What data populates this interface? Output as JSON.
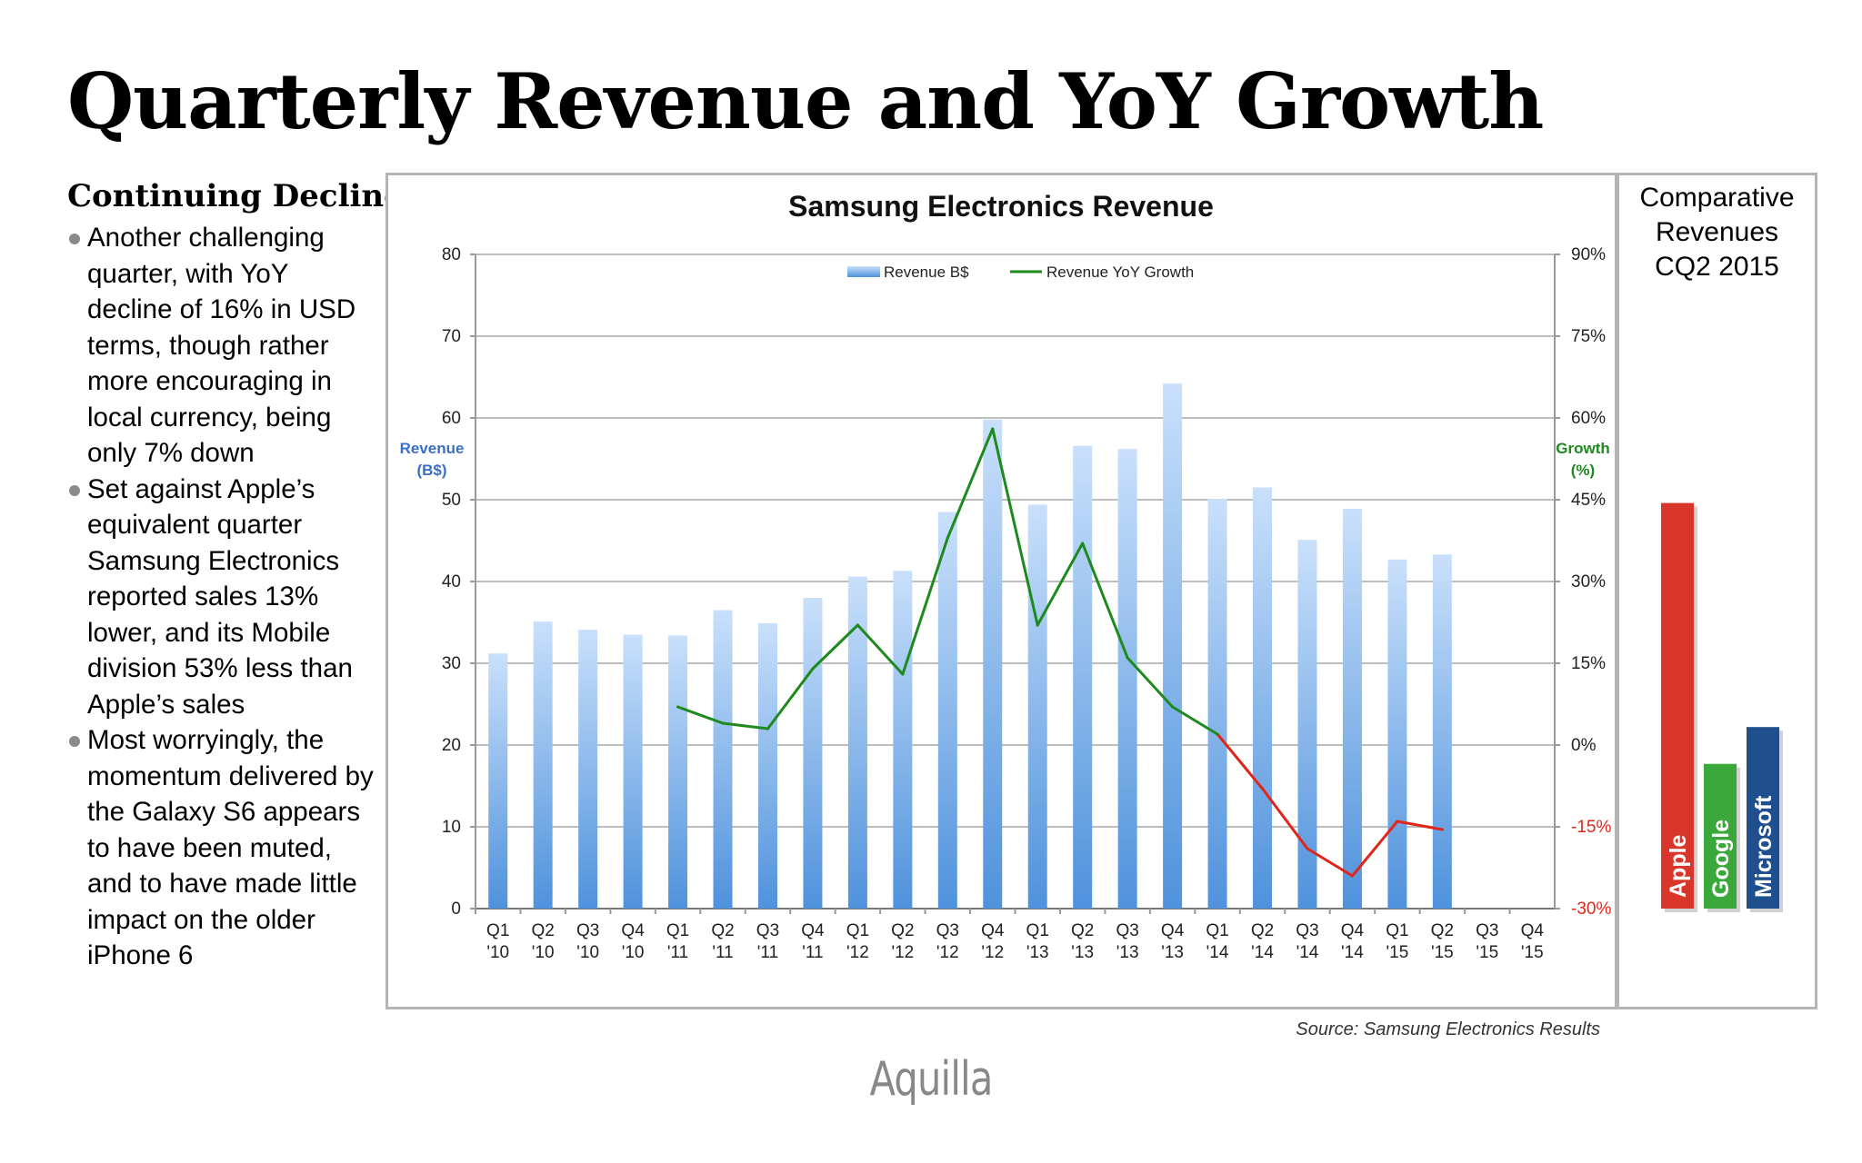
{
  "page": {
    "title": "Quarterly Revenue and YoY Growth",
    "sidebar_heading": "Continuing Decline",
    "bullets": [
      "Another challenging quarter, with YoY decline of 16% in USD terms, though rather more encouraging in local currency, being only 7% down",
      "Set against Apple’s equivalent quarter Samsung Electronics reported sales 13% lower, and its Mobile division 53% less than Apple’s sales",
      "Most worryingly, the momentum delivered by the Galaxy S6 appears to have been muted, and to have made little impact on the older iPhone 6"
    ],
    "source": "Source: Samsung Electronics Results",
    "logo": "Aquilla",
    "compare_title": [
      "Comparative",
      "Revenues",
      "CQ2 2015"
    ]
  },
  "chart_data": [
    {
      "type": "bar+line",
      "title": "Samsung Electronics Revenue",
      "ylabel_left": [
        "Revenue",
        "(B$)"
      ],
      "ylabel_right": [
        "Growth",
        "(%)"
      ],
      "ylim_left": [
        0,
        80
      ],
      "yticks_left": [
        "0",
        "10",
        "20",
        "30",
        "40",
        "50",
        "60",
        "70",
        "80"
      ],
      "ylim_right": [
        -30,
        90
      ],
      "yticks_right": [
        "-30%",
        "-15%",
        "0%",
        "15%",
        "30%",
        "45%",
        "60%",
        "75%",
        "90%"
      ],
      "grid": true,
      "legend_position": "top-center",
      "categories": [
        [
          "Q1",
          "'10"
        ],
        [
          "Q2",
          "'10"
        ],
        [
          "Q3",
          "'10"
        ],
        [
          "Q4",
          "'10"
        ],
        [
          "Q1",
          "'11"
        ],
        [
          "Q2",
          "'11"
        ],
        [
          "Q3",
          "'11"
        ],
        [
          "Q4",
          "'11"
        ],
        [
          "Q1",
          "'12"
        ],
        [
          "Q2",
          "'12"
        ],
        [
          "Q3",
          "'12"
        ],
        [
          "Q4",
          "'12"
        ],
        [
          "Q1",
          "'13"
        ],
        [
          "Q2",
          "'13"
        ],
        [
          "Q3",
          "'13"
        ],
        [
          "Q4",
          "'13"
        ],
        [
          "Q1",
          "'14"
        ],
        [
          "Q2",
          "'14"
        ],
        [
          "Q3",
          "'14"
        ],
        [
          "Q4",
          "'14"
        ],
        [
          "Q1",
          "'15"
        ],
        [
          "Q2",
          "'15"
        ],
        [
          "Q3",
          "'15"
        ],
        [
          "Q4",
          "'15"
        ]
      ],
      "series": [
        {
          "name": "Revenue B$",
          "kind": "bar",
          "axis": "left",
          "color": "#5b9be0",
          "values": [
            31.2,
            35.1,
            34.1,
            33.5,
            33.4,
            36.5,
            34.9,
            38.0,
            40.6,
            41.3,
            48.5,
            59.8,
            49.4,
            56.6,
            56.2,
            64.2,
            50.1,
            51.5,
            45.1,
            48.9,
            42.7,
            43.3,
            null,
            null
          ]
        },
        {
          "name": "Revenue YoY Growth",
          "kind": "line",
          "axis": "right",
          "color": "#1e8a1e",
          "negative_color": "#e0261a",
          "values": [
            null,
            null,
            null,
            null,
            7,
            4,
            3,
            14,
            22,
            13,
            38,
            58,
            22,
            37,
            16,
            7,
            2,
            -8,
            -19,
            -24,
            -14,
            -15.5,
            null,
            null
          ]
        }
      ]
    },
    {
      "type": "bar",
      "title": "Comparative Revenues CQ2 2015",
      "ylim": [
        0,
        80
      ],
      "categories": [
        "Apple",
        "Google",
        "Microsoft"
      ],
      "values": [
        49.6,
        17.7,
        22.2
      ],
      "colors": [
        "#d9362b",
        "#3aa83a",
        "#1f4f8c"
      ]
    }
  ]
}
